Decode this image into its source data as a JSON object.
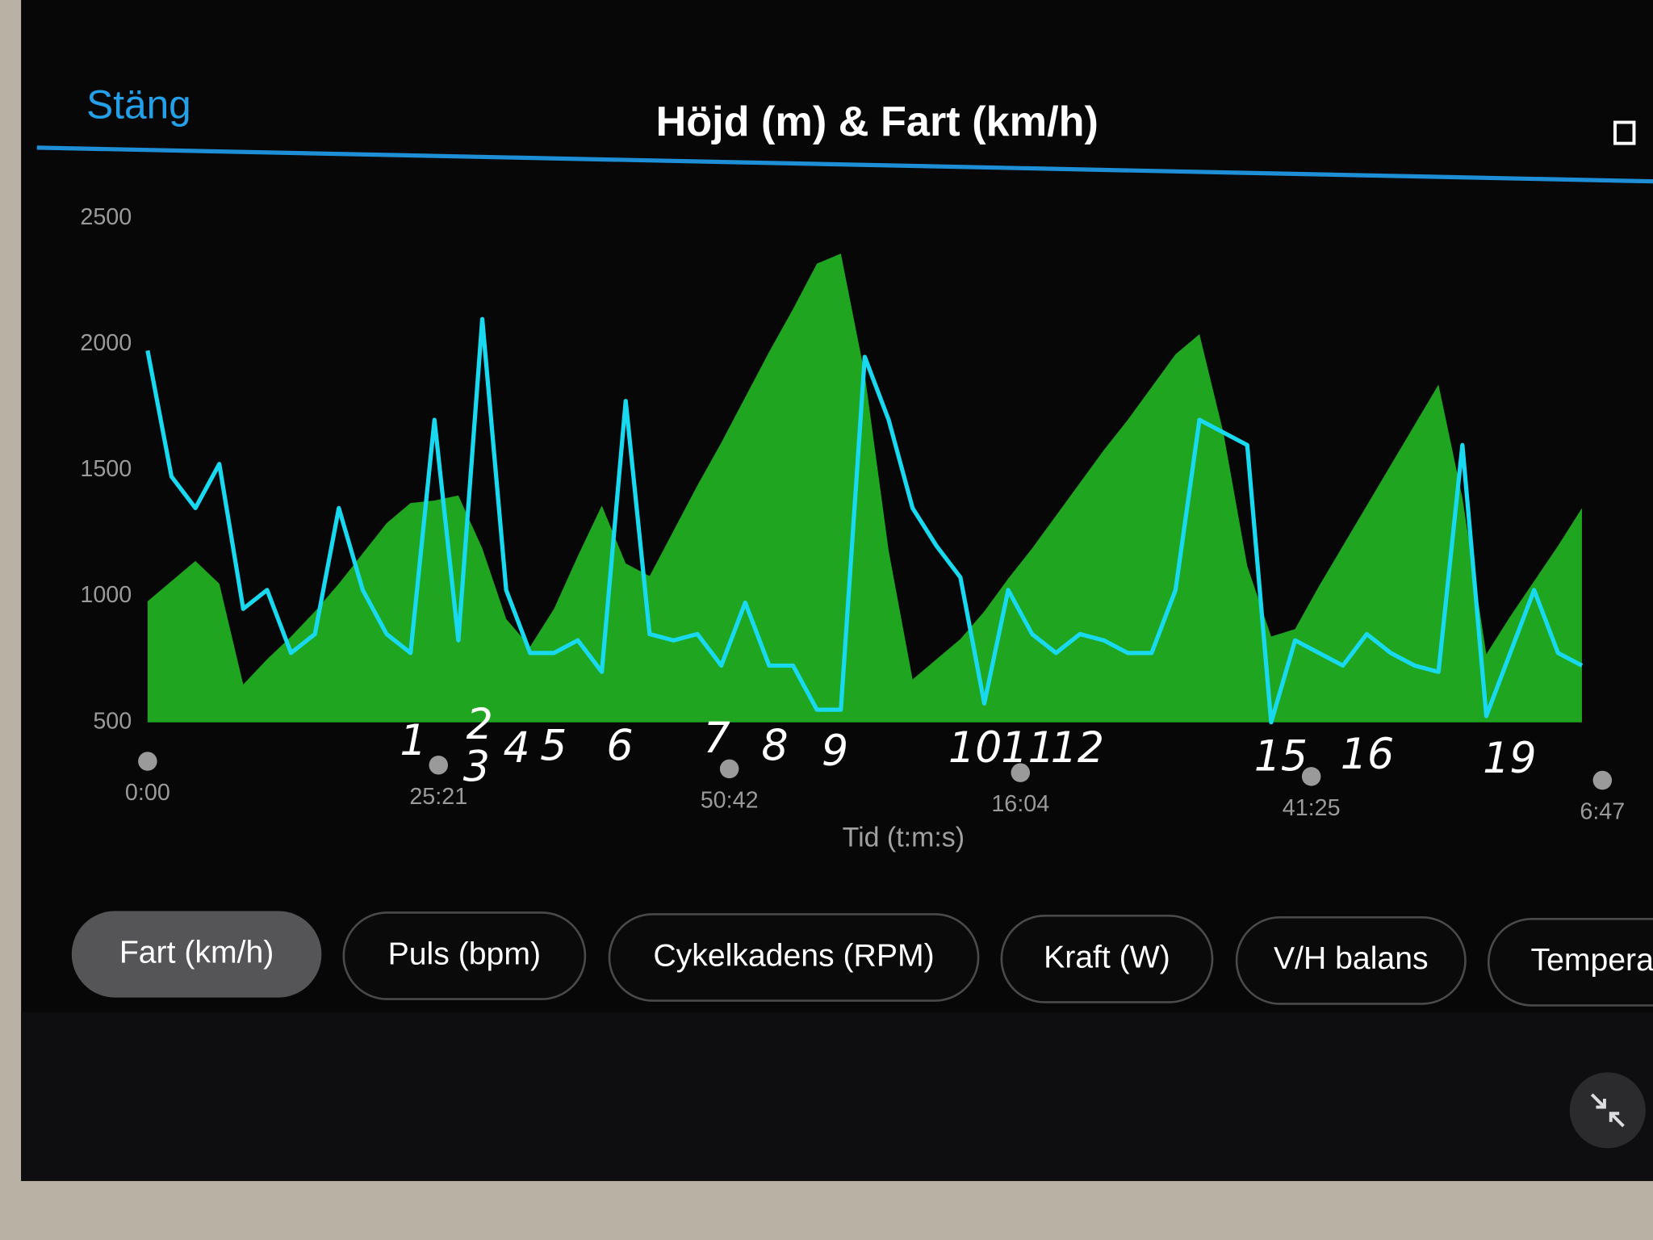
{
  "header": {
    "close": "Stäng",
    "title": "Höjd (m) & Fart (km/h)"
  },
  "chart_data": {
    "type": "area-line",
    "x_label": "Tid (t:m:s)",
    "x": [
      0,
      125,
      250,
      375,
      500,
      625,
      750,
      875,
      1000,
      1125,
      1250,
      1375,
      1500,
      1625,
      1750,
      1875,
      2000,
      2125,
      2250,
      2375,
      2500,
      2625,
      2750,
      2875,
      3000,
      3125,
      3250,
      3375,
      3500,
      3625,
      3750,
      3875,
      4000,
      4125,
      4250,
      4375,
      4500,
      4625,
      4750,
      4875,
      5000,
      5125,
      5250,
      5375,
      5500,
      5625,
      5750,
      5875,
      6000,
      6125,
      6250,
      6375,
      6500,
      6625,
      6750,
      6875,
      7000,
      7125,
      7250,
      7375,
      7500
    ],
    "series": [
      {
        "color": "#1fa51f",
        "kind": "area",
        "values": [
          980,
          1060,
          1140,
          1050,
          650,
          750,
          840,
          940,
          1050,
          1170,
          1290,
          1370,
          1380,
          1400,
          1190,
          910,
          800,
          950,
          1160,
          1360,
          1130,
          1080,
          1260,
          1440,
          1610,
          1790,
          1970,
          2140,
          2320,
          2360,
          1880,
          1180,
          670,
          750,
          830,
          940,
          1070,
          1190,
          1320,
          1450,
          1580,
          1700,
          1830,
          1960,
          2040,
          1650,
          1120,
          840,
          870,
          1040,
          1200,
          1360,
          1520,
          1680,
          1840,
          1390,
          770,
          920,
          1060,
          1200,
          1350
        ]
      },
      {
        "color": "#19d9f0",
        "kind": "line",
        "axis": "y2",
        "values": [
          59,
          39,
          34,
          41,
          18,
          21,
          11,
          14,
          34,
          21,
          14,
          11,
          48,
          13,
          64,
          21,
          11,
          11,
          13,
          8,
          51,
          14,
          13,
          14,
          9,
          19,
          9,
          9,
          2,
          2,
          58,
          48,
          34,
          28,
          23,
          3,
          21,
          14,
          11,
          14,
          13,
          11,
          11,
          21,
          48,
          46,
          44,
          0,
          13,
          11,
          9,
          14,
          11,
          9,
          8,
          44,
          1,
          11,
          21,
          11,
          9
        ]
      }
    ],
    "xlim": [
      0,
      7607
    ],
    "xticks": [
      {
        "value": 0,
        "label": "0:00"
      },
      {
        "value": 1521,
        "label": "25:21"
      },
      {
        "value": 3042,
        "label": "50:42"
      },
      {
        "value": 4564,
        "label": "16:04"
      },
      {
        "value": 6085,
        "label": "41:25"
      },
      {
        "value": 7607,
        "label": "6:47"
      }
    ],
    "ylim": [
      500,
      2500
    ],
    "yticks": [
      500,
      1000,
      1500,
      2000,
      2500
    ],
    "y2lim": [
      0,
      80
    ],
    "grid": false,
    "annotations": [
      "1",
      "2",
      "3",
      "4",
      "5",
      "6",
      "7",
      "8",
      "9",
      "10",
      "11",
      "12",
      "15",
      "16",
      "19"
    ]
  },
  "buttons": [
    "Fart (km/h)",
    "Puls (bpm)",
    "Cykelkadens (RPM)",
    "Kraft (W)",
    "V/H balans",
    "Tempera"
  ]
}
